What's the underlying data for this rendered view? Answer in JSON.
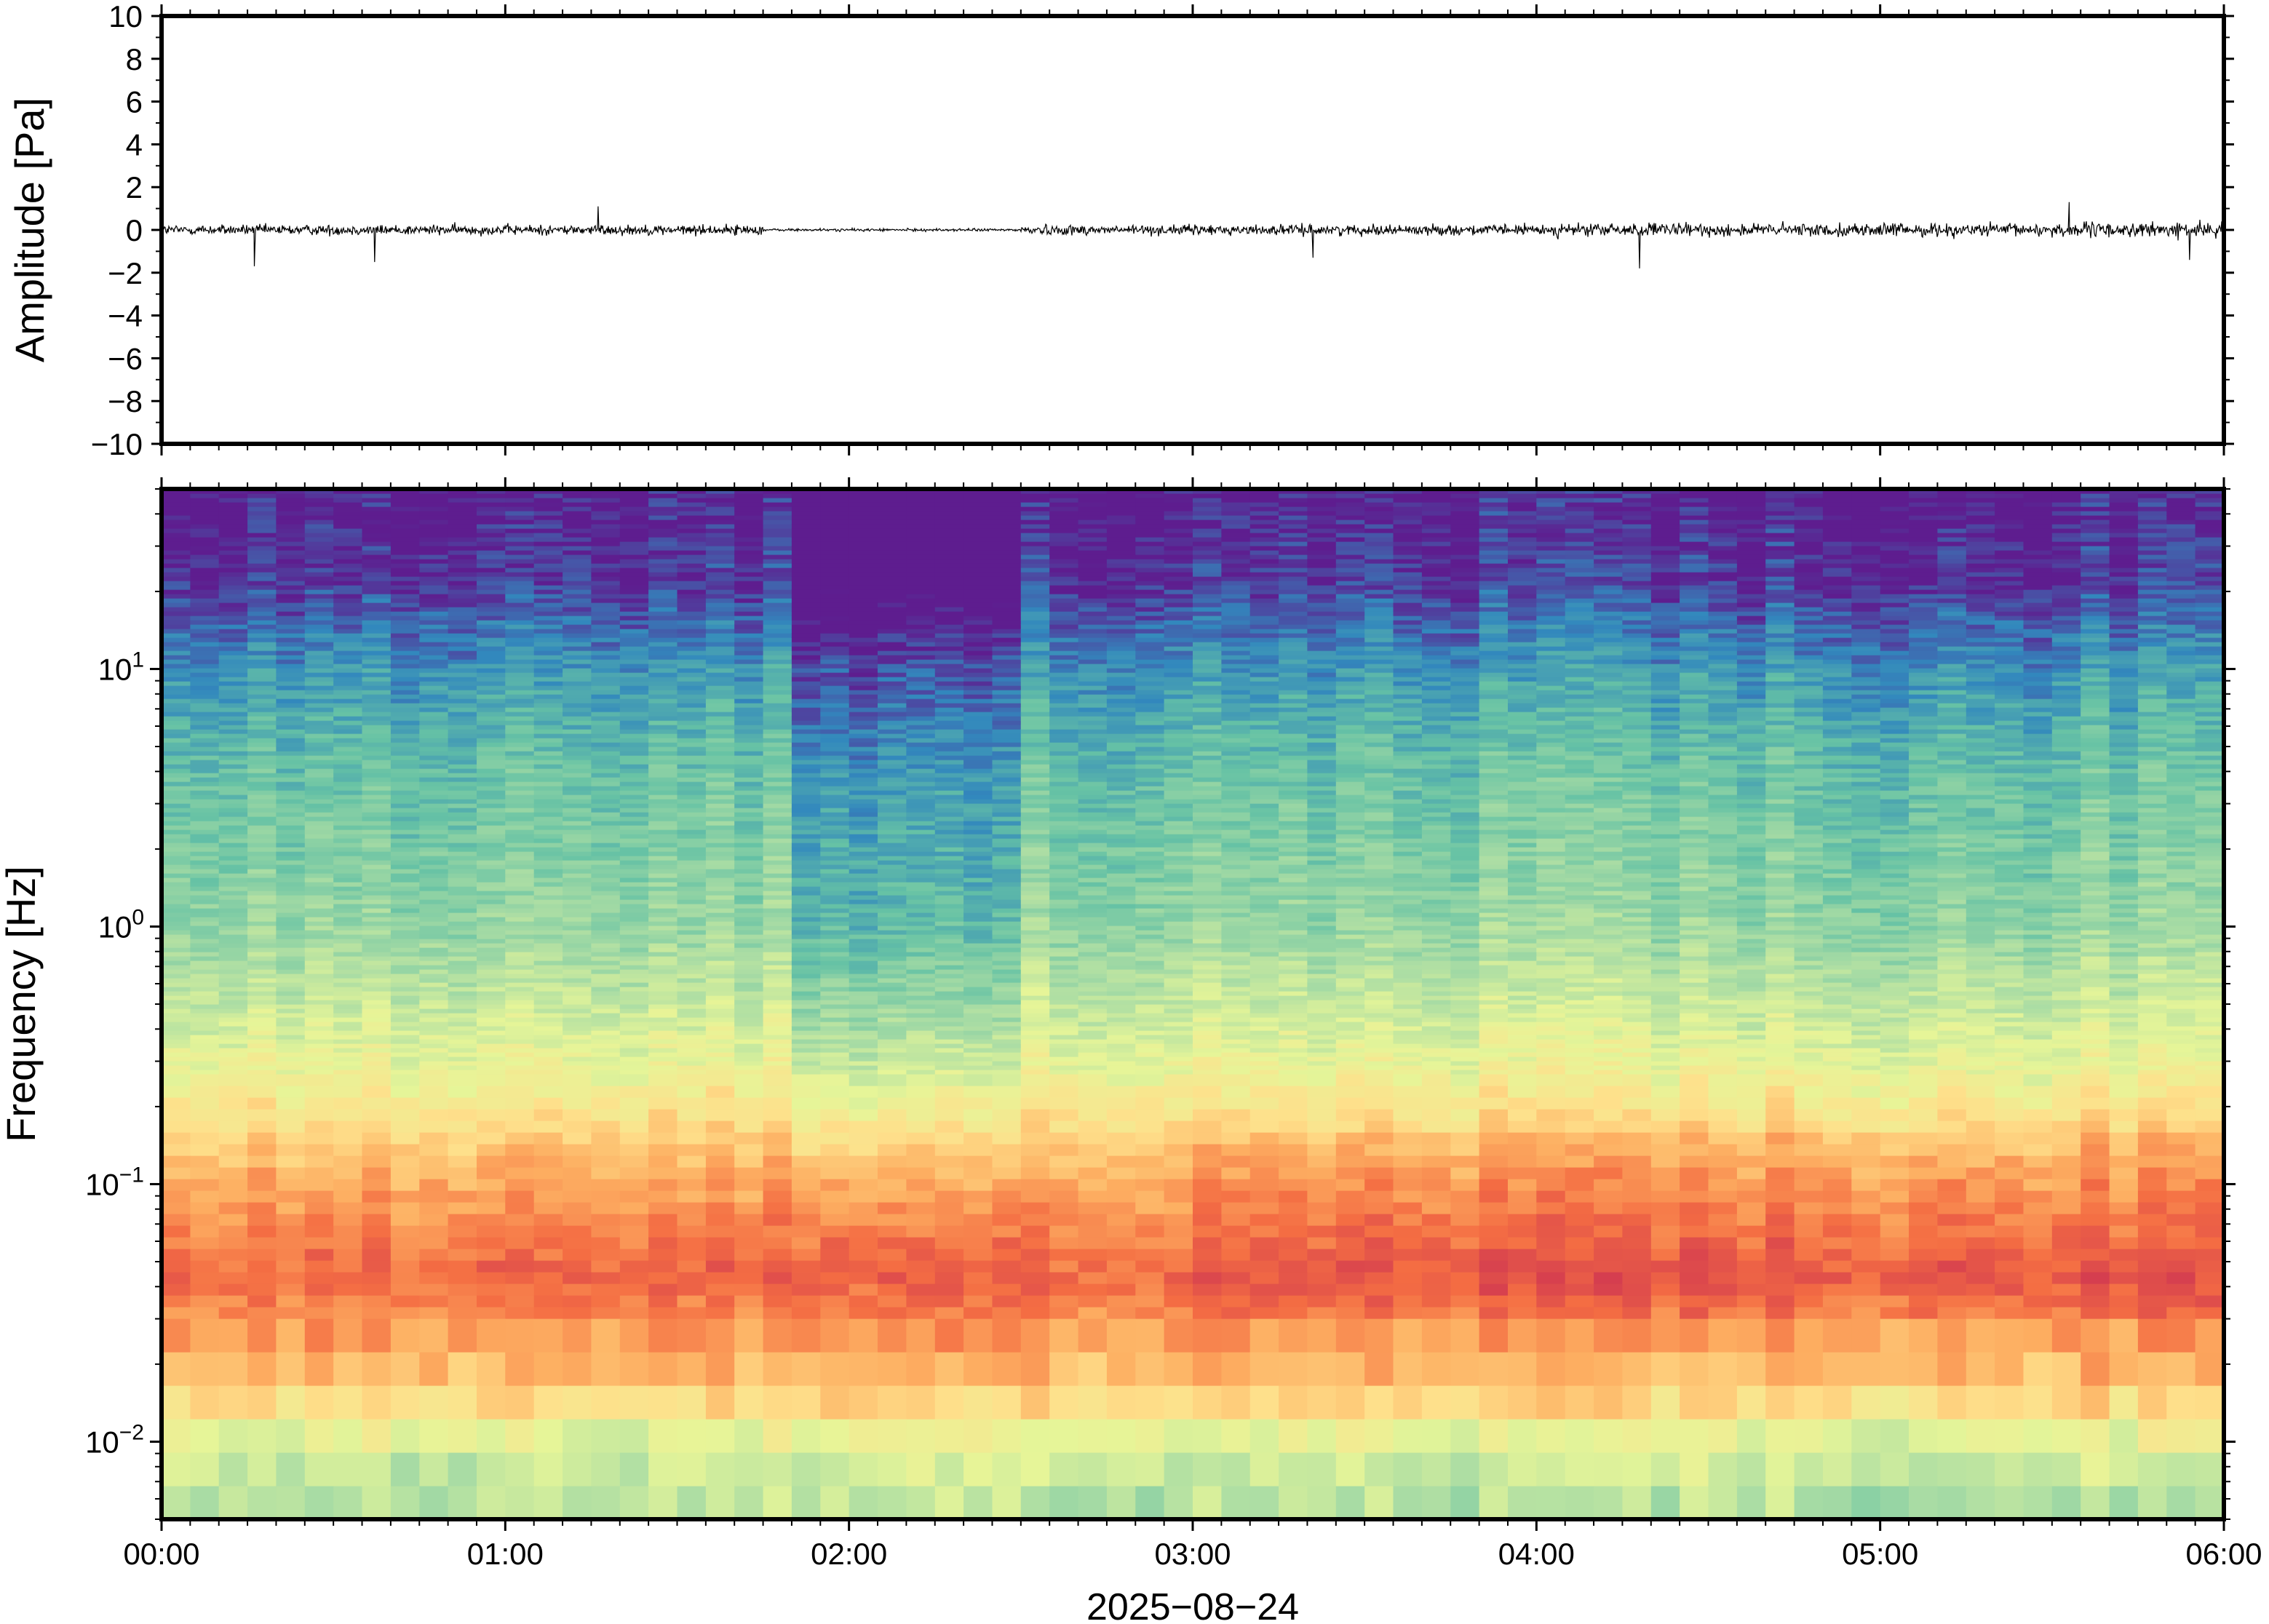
{
  "chart_data": [
    {
      "type": "line",
      "ylabel": "Amplitude [Pa]",
      "ylim": [
        -10,
        10
      ],
      "yticks": [
        "10",
        "8",
        "6",
        "4",
        "2",
        "0",
        "−2",
        "−4",
        "−6",
        "−8",
        "−10"
      ],
      "xlim_hours": [
        0,
        6
      ],
      "grid": false,
      "series": [
        {
          "description_segments": [
            {
              "t_start": 0.0,
              "t_end": 1.75,
              "envelope_pa": 0.55
            },
            {
              "t_start": 1.75,
              "t_end": 2.5,
              "envelope_pa": 0.15
            },
            {
              "t_start": 2.5,
              "t_end": 4.0,
              "envelope_pa": 0.55
            },
            {
              "t_start": 4.0,
              "t_end": 5.5,
              "envelope_pa": 0.7
            },
            {
              "t_start": 5.5,
              "t_end": 6.0,
              "envelope_pa": 0.8
            }
          ],
          "peaks": [
            {
              "t": 0.27,
              "value": -1.7
            },
            {
              "t": 0.62,
              "value": -1.5
            },
            {
              "t": 1.27,
              "value": 1.1
            },
            {
              "t": 3.35,
              "value": -1.3
            },
            {
              "t": 4.3,
              "value": -1.8
            },
            {
              "t": 5.55,
              "value": 1.3
            },
            {
              "t": 5.9,
              "value": -1.4
            }
          ]
        }
      ]
    },
    {
      "type": "heatmap",
      "ylabel": "Frequency [Hz]",
      "xlabel": "2025−08−24",
      "yscale": "log",
      "ylim": [
        0.005,
        50
      ],
      "yticks": [
        {
          "value": 10,
          "base": "10",
          "exp": "1"
        },
        {
          "value": 1,
          "base": "10",
          "exp": "0"
        },
        {
          "value": 0.1,
          "base": "10",
          "exp": "−1"
        },
        {
          "value": 0.01,
          "base": "10",
          "exp": "−2"
        }
      ],
      "xticks": [
        "00:00",
        "01:00",
        "02:00",
        "03:00",
        "04:00",
        "05:00",
        "06:00"
      ],
      "xlim_hours": [
        0,
        6
      ],
      "colormap": "spectral",
      "colormap_stops": [
        "#5e1d8f",
        "#3288bd",
        "#66c2a5",
        "#abdda4",
        "#e6f598",
        "#fee08b",
        "#fdae61",
        "#f46d43",
        "#d53e4f"
      ],
      "quiet_interval_hours": [
        1.85,
        2.5
      ],
      "colors": {
        "background": "#ffffff",
        "axis": "#000000",
        "trace": "#000000"
      }
    }
  ]
}
